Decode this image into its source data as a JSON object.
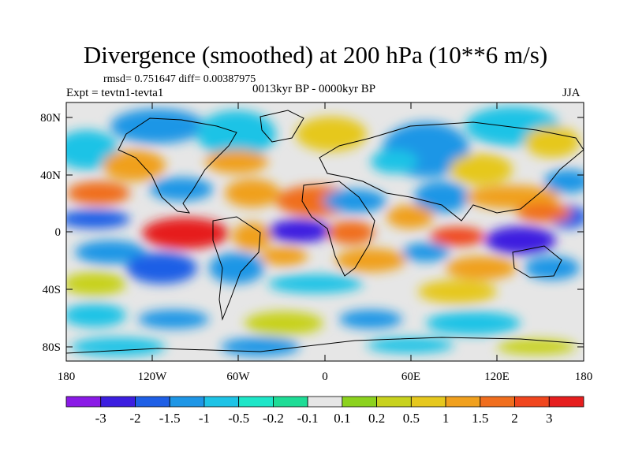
{
  "title": "Divergence (smoothed) at 200 hPa (10**6 m/s)",
  "stats": "rmsd= 0.751647 diff= 0.00387975",
  "experiment": "Expt = tevtn1-tevta1",
  "period": "0013kyr BP - 0000kyr BP",
  "season": "JJA",
  "axes": {
    "lat_ticks": [
      "80N",
      "40N",
      "0",
      "40S",
      "80S"
    ],
    "lon_ticks": [
      "180",
      "120W",
      "60W",
      "0",
      "60E",
      "120E",
      "180"
    ]
  },
  "colorbar": {
    "colors": [
      "#8a1ae6",
      "#3c1ee0",
      "#1e5fe6",
      "#1e96e6",
      "#1ec3e6",
      "#1ee6c8",
      "#1edc96",
      "#e6e6e6",
      "#8cd21e",
      "#c8d21e",
      "#e6c81e",
      "#f0a01e",
      "#f06e1e",
      "#f0461e",
      "#e61e1e"
    ],
    "labels": [
      "-3",
      "-2",
      "-1.5",
      "-1",
      "-0.5",
      "-0.2",
      "-0.1",
      "0.1",
      "0.2",
      "0.5",
      "1",
      "1.5",
      "2",
      "3"
    ]
  }
}
